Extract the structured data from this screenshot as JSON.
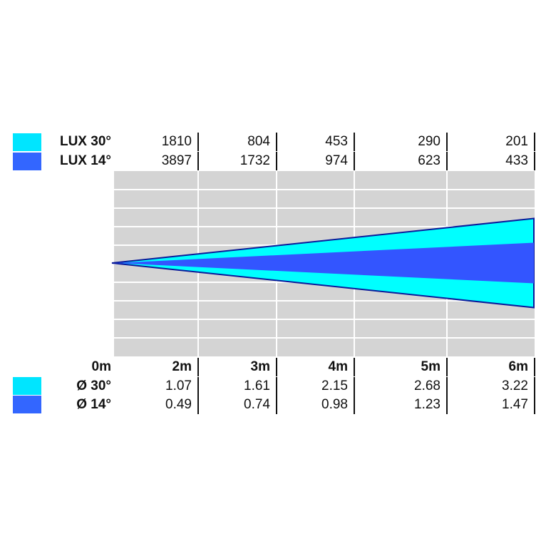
{
  "chart_data": {
    "type": "beam-diagram",
    "distance_labels": [
      "0m",
      "2m",
      "3m",
      "4m",
      "5m",
      "6m"
    ],
    "distances_m": [
      0,
      2,
      3,
      4,
      5,
      6
    ],
    "series": [
      {
        "name": "LUX 30°",
        "kind": "lux",
        "beam_deg": 30,
        "color": "#00e5ff",
        "values": [
          "1810",
          "804",
          "453",
          "290",
          "201"
        ]
      },
      {
        "name": "LUX 14°",
        "kind": "lux",
        "beam_deg": 14,
        "color": "#3366ff",
        "values": [
          "3897",
          "1732",
          "974",
          "623",
          "433"
        ]
      },
      {
        "name": "Ø 30°",
        "kind": "diameter",
        "beam_deg": 30,
        "color": "#00e5ff",
        "values": [
          "1.07",
          "1.61",
          "2.15",
          "2.68",
          "3.22"
        ]
      },
      {
        "name": "Ø 14°",
        "kind": "diameter",
        "beam_deg": 14,
        "color": "#3366ff",
        "values": [
          "0.49",
          "0.74",
          "0.98",
          "1.23",
          "1.47"
        ]
      }
    ],
    "beam_colors": {
      "wide": "#00ffff",
      "narrow": "#3355ff",
      "outline": "#0a1a9a"
    },
    "grid": true,
    "grid_color": "#d4d4d4"
  }
}
